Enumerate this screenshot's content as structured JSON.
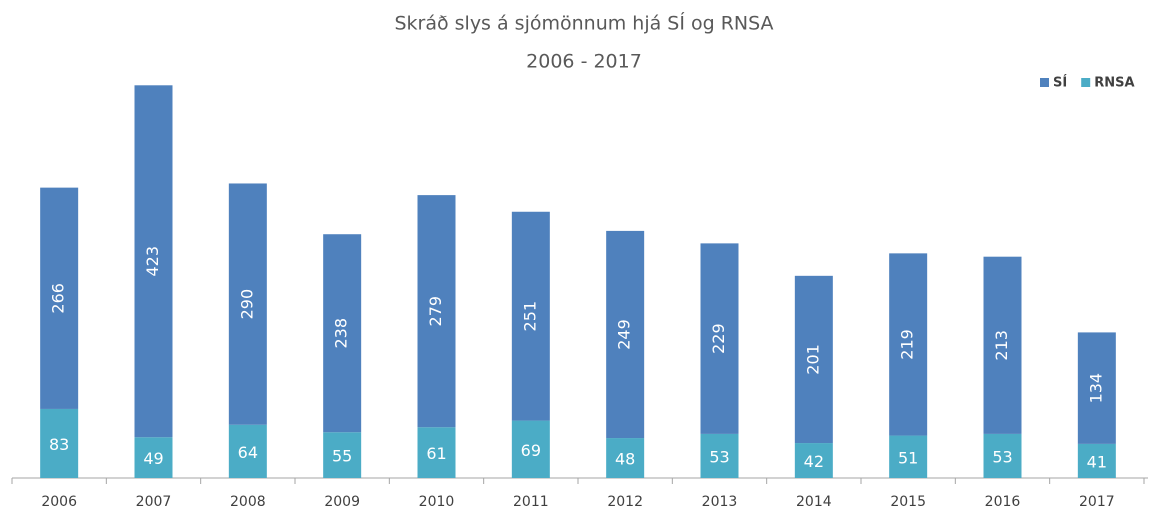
{
  "chart_data": {
    "type": "stacked_bar",
    "title": "Skráð slys á sjómönnum hjá SÍ og RNSA",
    "subtitle": "2006 - 2017",
    "categories": [
      "2006",
      "2007",
      "2008",
      "2009",
      "2010",
      "2011",
      "2012",
      "2013",
      "2014",
      "2015",
      "2016",
      "2017"
    ],
    "series": [
      {
        "name": "RNSA",
        "color": "#4bacc6",
        "values": [
          83,
          49,
          64,
          55,
          61,
          69,
          48,
          53,
          42,
          51,
          53,
          41
        ]
      },
      {
        "name": "SÍ",
        "color": "#4f81bd",
        "values": [
          266,
          423,
          290,
          238,
          279,
          251,
          249,
          229,
          201,
          219,
          213,
          134
        ]
      }
    ],
    "ylim": [
      0,
      500
    ],
    "legend": "top-right"
  }
}
